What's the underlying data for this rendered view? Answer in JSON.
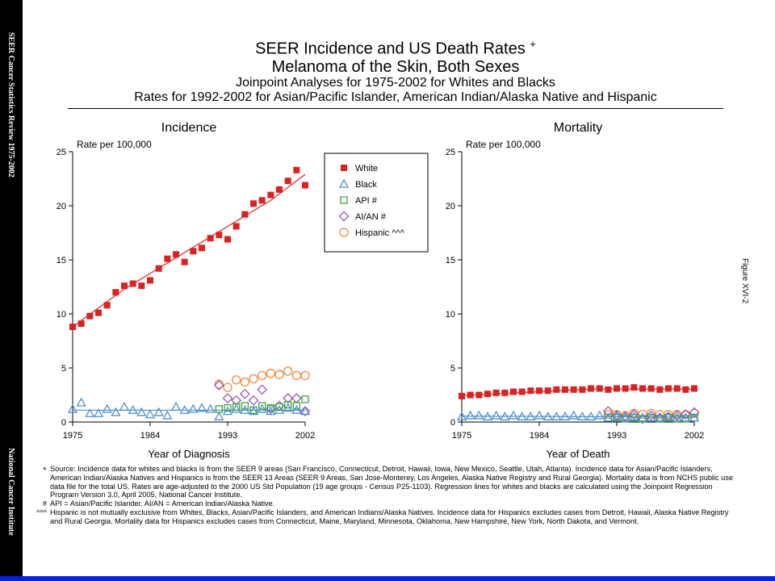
{
  "sidebar": {
    "top_text": "SEER Cancer Statistics Review 1975-2002",
    "bottom_text": "National Cancer Institute"
  },
  "figure_label": "Figure XVI-2",
  "titles": {
    "line1": "SEER Incidence and US Death Rates",
    "line1_mark": "+",
    "line2": "Melanoma of the Skin, Both Sexes",
    "line3": "Joinpoint Analyses for 1975-2002 for Whites and Blacks",
    "line4": "Rates for 1992-2002 for Asian/Pacific Islander, American Indian/Alaska Native and Hispanic"
  },
  "legend": [
    {
      "label": "White",
      "color": "#d92323",
      "marker": "filled-square"
    },
    {
      "label": "Black",
      "color": "#4f8fd0",
      "marker": "open-triangle"
    },
    {
      "label": "API #",
      "color": "#3aa63a",
      "marker": "open-square"
    },
    {
      "label": "AI/AN #",
      "color": "#9b59b6",
      "marker": "open-diamond"
    },
    {
      "label": "Hispanic ^^^",
      "color": "#f0883a",
      "marker": "open-circle"
    }
  ],
  "chart_data": [
    {
      "type": "scatter",
      "title": "Incidence",
      "ylabel": "Rate per 100,000",
      "xlabel": "Year of Diagnosis",
      "xlim": [
        1975,
        2002
      ],
      "ylim": [
        0,
        25
      ],
      "xticks": [
        1975,
        1984,
        1993,
        2002
      ],
      "yticks": [
        0,
        5,
        10,
        15,
        20,
        25
      ],
      "series": [
        {
          "name": "White",
          "x": [
            1975,
            1976,
            1977,
            1978,
            1979,
            1980,
            1981,
            1982,
            1983,
            1984,
            1985,
            1986,
            1987,
            1988,
            1989,
            1990,
            1991,
            1992,
            1993,
            1994,
            1995,
            1996,
            1997,
            1998,
            1999,
            2000,
            2001,
            2002
          ],
          "values": [
            8.8,
            9.1,
            9.8,
            10.1,
            10.8,
            12.0,
            12.6,
            12.8,
            12.6,
            13.1,
            14.2,
            15.1,
            15.5,
            14.8,
            15.8,
            16.1,
            17.0,
            17.3,
            16.9,
            18.1,
            19.2,
            20.2,
            20.5,
            21.0,
            21.5,
            22.3,
            23.3,
            21.9
          ]
        },
        {
          "name": "Black",
          "x": [
            1975,
            1976,
            1977,
            1978,
            1979,
            1980,
            1981,
            1982,
            1983,
            1984,
            1985,
            1986,
            1987,
            1988,
            1989,
            1990,
            1991,
            1992,
            1993,
            1994,
            1995,
            1996,
            1997,
            1998,
            1999,
            2000,
            2001,
            2002
          ],
          "values": [
            1.2,
            1.8,
            0.8,
            0.8,
            1.2,
            0.9,
            1.4,
            1.1,
            0.9,
            0.7,
            0.9,
            0.6,
            1.4,
            1.1,
            1.2,
            1.3,
            1.2,
            0.5,
            1.0,
            1.2,
            1.1,
            1.0,
            1.2,
            1.0,
            1.1,
            1.3,
            1.1,
            1.0
          ]
        },
        {
          "name": "API #",
          "x": [
            1992,
            1993,
            1994,
            1995,
            1996,
            1997,
            1998,
            1999,
            2000,
            2001,
            2002
          ],
          "values": [
            1.2,
            1.3,
            1.4,
            1.5,
            1.1,
            1.5,
            1.3,
            1.4,
            1.6,
            1.5,
            2.1
          ]
        },
        {
          "name": "AI/AN #",
          "x": [
            1992,
            1993,
            1994,
            1995,
            1996,
            1997,
            1998,
            1999,
            2000,
            2001,
            2002
          ],
          "values": [
            3.4,
            2.2,
            2.0,
            2.6,
            2.0,
            3.0,
            1.2,
            1.5,
            2.2,
            2.2,
            1.0
          ]
        },
        {
          "name": "Hispanic ^^^",
          "x": [
            1992,
            1993,
            1994,
            1995,
            1996,
            1997,
            1998,
            1999,
            2000,
            2001,
            2002
          ],
          "values": [
            3.5,
            3.2,
            3.9,
            3.7,
            4.0,
            4.3,
            4.5,
            4.4,
            4.7,
            4.3,
            4.3
          ]
        }
      ],
      "fit_lines": [
        {
          "name": "White",
          "x": [
            1975,
            1981,
            1998,
            2002
          ],
          "values": [
            8.8,
            12.3,
            20.5,
            22.9
          ]
        },
        {
          "name": "Black",
          "x": [
            1975,
            2002
          ],
          "values": [
            1.1,
            1.1
          ]
        }
      ]
    },
    {
      "type": "scatter",
      "title": "Mortality",
      "ylabel": "Rate per 100,000",
      "xlabel": "Year of Death",
      "xlim": [
        1975,
        2002
      ],
      "ylim": [
        0,
        25
      ],
      "xticks": [
        1975,
        1984,
        1993,
        2002
      ],
      "yticks": [
        0,
        5,
        10,
        15,
        20,
        25
      ],
      "series": [
        {
          "name": "White",
          "x": [
            1975,
            1976,
            1977,
            1978,
            1979,
            1980,
            1981,
            1982,
            1983,
            1984,
            1985,
            1986,
            1987,
            1988,
            1989,
            1990,
            1991,
            1992,
            1993,
            1994,
            1995,
            1996,
            1997,
            1998,
            1999,
            2000,
            2001,
            2002
          ],
          "values": [
            2.4,
            2.5,
            2.5,
            2.6,
            2.7,
            2.7,
            2.8,
            2.8,
            2.9,
            2.9,
            2.9,
            3.0,
            3.0,
            3.0,
            3.0,
            3.1,
            3.1,
            3.0,
            3.1,
            3.1,
            3.2,
            3.1,
            3.1,
            3.0,
            3.1,
            3.1,
            3.0,
            3.1
          ]
        },
        {
          "name": "Black",
          "x": [
            1975,
            1976,
            1977,
            1978,
            1979,
            1980,
            1981,
            1982,
            1983,
            1984,
            1985,
            1986,
            1987,
            1988,
            1989,
            1990,
            1991,
            1992,
            1993,
            1994,
            1995,
            1996,
            1997,
            1998,
            1999,
            2000,
            2001,
            2002
          ],
          "values": [
            0.5,
            0.6,
            0.6,
            0.5,
            0.6,
            0.5,
            0.6,
            0.5,
            0.5,
            0.6,
            0.5,
            0.5,
            0.5,
            0.6,
            0.5,
            0.5,
            0.6,
            0.4,
            0.5,
            0.4,
            0.5,
            0.4,
            0.4,
            0.4,
            0.5,
            0.4,
            0.4,
            0.4
          ]
        },
        {
          "name": "API #",
          "x": [
            1992,
            1993,
            1994,
            1995,
            1996,
            1997,
            1998,
            1999,
            2000,
            2001,
            2002
          ],
          "values": [
            0.4,
            0.4,
            0.3,
            0.4,
            0.3,
            0.4,
            0.3,
            0.4,
            0.3,
            0.3,
            0.4
          ]
        },
        {
          "name": "AI/AN #",
          "x": [
            1992,
            1993,
            1994,
            1995,
            1996,
            1997,
            1998,
            1999,
            2000,
            2001,
            2002
          ],
          "values": [
            1.0,
            0.6,
            0.5,
            0.7,
            0.3,
            0.6,
            0.4,
            0.5,
            0.6,
            0.7,
            0.9
          ]
        },
        {
          "name": "Hispanic ^^^",
          "x": [
            1992,
            1993,
            1994,
            1995,
            1996,
            1997,
            1998,
            1999,
            2000,
            2001,
            2002
          ],
          "values": [
            0.7,
            0.7,
            0.6,
            0.8,
            0.7,
            0.8,
            0.7,
            0.7,
            0.7,
            0.7,
            0.8
          ]
        }
      ],
      "fit_lines": [
        {
          "name": "White",
          "x": [
            1975,
            1990,
            2002
          ],
          "values": [
            2.45,
            3.05,
            3.05
          ]
        },
        {
          "name": "Black",
          "x": [
            1975,
            2002
          ],
          "values": [
            0.55,
            0.45
          ]
        }
      ]
    }
  ],
  "footnotes": [
    {
      "mark": "+",
      "text": "Source: Incidence data for whites and blacks is from the SEER 9 areas (San Francisco, Connecticut, Detroit, Hawaii, Iowa, New Mexico, Seattle, Utah, Atlanta). Incidence data for Asian/Pacific Islanders, American Indian/Alaska Natives and Hispanics is from the SEER 13 Areas (SEER 9 Areas, San Jose-Monterey, Los Angeles, Alaska Native Registry and Rural Georgia). Mortality data is from NCHS public use data file for the total US. Rates are age-adjusted to the 2000 US Std Population (19 age groups - Census P25-1103). Regression lines for whites and blacks are calculated using the Joinpoint Regression Program Version 3.0, April 2005, National Cancer Institute."
    },
    {
      "mark": "#",
      "text": "API = Asian/Pacific Islander. AI/AN = American Indian/Alaska Native."
    },
    {
      "mark": "^^^",
      "text": "Hispanic is not mutually exclusive from Whites, Blacks, Asian/Pacific Islanders, and American Indians/Alaska Natives. Incidence data for Hispanics excludes cases from Detroit, Hawaii, Alaska Native Registry and Rural Georgia. Mortality data for Hispanics excludes cases from Connecticut, Maine, Maryland, Minnesota, Oklahoma, New Hampshire, New York, North Dakota, and Vermont."
    }
  ]
}
